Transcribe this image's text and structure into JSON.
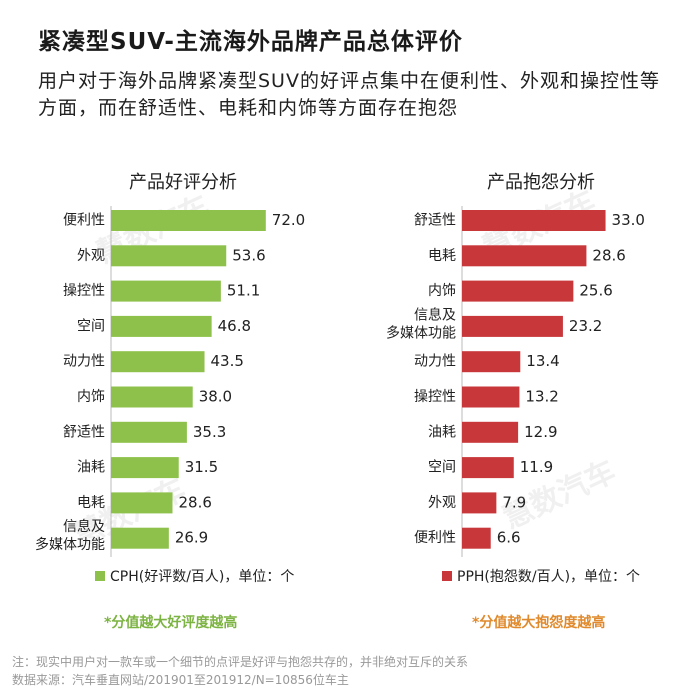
{
  "title": "紧凑型SUV-主流海外品牌产品总体评价",
  "subtitle": "用户对于海外品牌紧凑型SUV的好评点集中在便利性、外观和操控性等方面，而在舒适性、电耗和内饰等方面存在抱怨",
  "watermark": "慧数汽车",
  "colors": {
    "good": "#8dc14b",
    "bad": "#c8373a",
    "good_note": "#7cb342",
    "bad_note": "#e08a2d"
  },
  "chart_data": [
    {
      "type": "bar",
      "orientation": "horizontal",
      "title": "产品好评分析",
      "categories": [
        "便利性",
        "外观",
        "操控性",
        "空间",
        "动力性",
        "内饰",
        "舒适性",
        "油耗",
        "电耗",
        "信息及\n多媒体功能"
      ],
      "series": [
        {
          "name": "CPH(好评数/百人)",
          "values": [
            72.0,
            53.6,
            51.1,
            46.8,
            43.5,
            38.0,
            35.3,
            31.5,
            28.6,
            26.9
          ]
        }
      ],
      "value_labels": [
        "72.0",
        "53.6",
        "51.1",
        "46.8",
        "43.5",
        "38.0",
        "35.3",
        "31.5",
        "28.6",
        "26.9"
      ],
      "legend": "CPH(好评数/百人)，单位：个",
      "note": "*分值越大好评度越高"
    },
    {
      "type": "bar",
      "orientation": "horizontal",
      "title": "产品抱怨分析",
      "categories": [
        "舒适性",
        "电耗",
        "内饰",
        "信息及\n多媒体功能",
        "动力性",
        "操控性",
        "油耗",
        "空间",
        "外观",
        "便利性"
      ],
      "series": [
        {
          "name": "PPH(抱怨数/百人)",
          "values": [
            33.0,
            28.6,
            25.6,
            23.2,
            13.4,
            13.2,
            12.9,
            11.9,
            7.9,
            6.6
          ]
        }
      ],
      "value_labels": [
        "33.0",
        "28.6",
        "25.6",
        "23.2",
        "13.4",
        "13.2",
        "12.9",
        "11.9",
        "7.9",
        "6.6"
      ],
      "legend": "PPH(抱怨数/百人)，单位：个",
      "note": "*分值越大抱怨度越高"
    }
  ],
  "footer": {
    "note": "注：现实中用户对一款车或一个细节的点评是好评与抱怨共存的，并非绝对互斥的关系",
    "source": "数据来源：汽车垂直网站/201901至201912/N=10856位车主"
  }
}
